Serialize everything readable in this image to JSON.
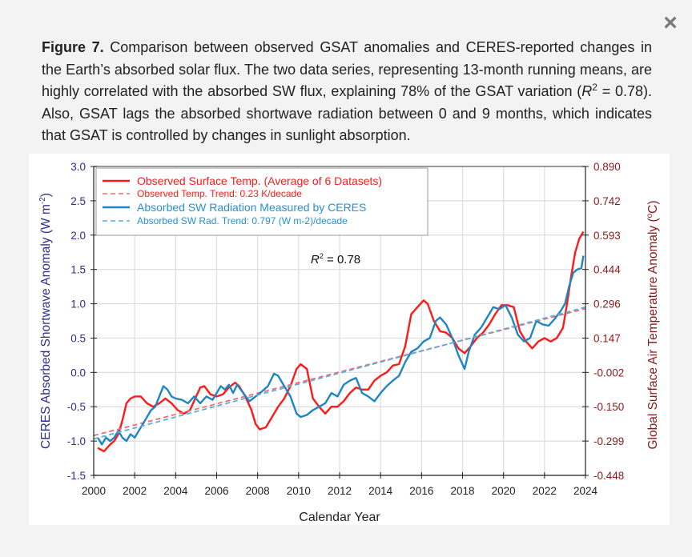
{
  "dialog": {
    "close_label": "×"
  },
  "caption": {
    "label": "Figure 7.",
    "text_1": " Comparison between observed GSAT anomalies and CERES-reported changes in the Earth’s absorbed solar flux. The two data series, representing 13-month running means, are highly correlated with the absorbed SW flux, explaining 78% of the GSAT variation (",
    "r_symbol": "R",
    "r_exp": "2",
    "text_2": " = 0.78). Also, GSAT lags the absorbed shortwave radiation between 0 and 9 months, which indicates that GSAT is controlled by changes in sunlight absorption."
  },
  "colors": {
    "temp": "#ff1a1a",
    "temp_trend": "#f26b6b",
    "sw": "#1f86c4",
    "sw_trend": "#5aaee0",
    "left_axis": "#2e2e8f",
    "right_axis": "#8b1a1a"
  },
  "chart_data": {
    "type": "line",
    "title": "",
    "xlabel": "Calendar Year",
    "ylabel": "CERES Absorbed Shortwave Anomaly (W m-2)",
    "ylabel_main": "CERES Absorbed Shortwave Anomaly (W m",
    "ylabel_sup": "-2",
    "ylabel_close": ")",
    "y2label": "Global Surface Air Temperature Anomaly (°C)",
    "y2label_main": "Global Surface Air Temperature Anomaly (",
    "y2label_sup": "o",
    "y2label_close": "C)",
    "xlim": [
      2000,
      2024
    ],
    "ylim": [
      -1.5,
      3.0
    ],
    "y2lim": [
      -0.448,
      0.89
    ],
    "grid": true,
    "x_ticks": [
      "2000",
      "2002",
      "2004",
      "2006",
      "2008",
      "2010",
      "2012",
      "2014",
      "2016",
      "2018",
      "2020",
      "2022",
      "2024"
    ],
    "y_ticks": [
      "3.0",
      "2.5",
      "2.0",
      "1.5",
      "1.0",
      "0.5",
      "0.0",
      "-0.5",
      "-1.0",
      "-1.5"
    ],
    "y2_ticks": [
      "0.890",
      "0.742",
      "0.593",
      "0.444",
      "0.296",
      "0.147",
      "-0.002",
      "-0.150",
      "-0.299",
      "-0.448"
    ],
    "annotation": {
      "r_symbol": "R",
      "r_exp": "2",
      "text": " = 0.78"
    },
    "legend_position": "top-left",
    "series": [
      {
        "name": "Observed Surface Temp. (Average of 6 Datasets)",
        "style": "solid",
        "color_key": "temp",
        "axis_note": "plotted on left-axis scale; right axis maps values to °C",
        "x": [
          2000.2,
          2000.5,
          2000.8,
          2001.0,
          2001.2,
          2001.4,
          2001.6,
          2001.8,
          2002.0,
          2002.3,
          2002.6,
          2002.9,
          2003.2,
          2003.5,
          2003.8,
          2004.1,
          2004.4,
          2004.7,
          2005.0,
          2005.2,
          2005.4,
          2005.7,
          2006.0,
          2006.3,
          2006.6,
          2006.9,
          2007.1,
          2007.4,
          2007.7,
          2007.9,
          2008.1,
          2008.4,
          2008.7,
          2009.0,
          2009.3,
          2009.6,
          2009.9,
          2010.1,
          2010.4,
          2010.7,
          2011.0,
          2011.3,
          2011.6,
          2011.9,
          2012.2,
          2012.5,
          2012.8,
          2013.1,
          2013.4,
          2013.7,
          2014.0,
          2014.3,
          2014.6,
          2014.9,
          2015.2,
          2015.5,
          2015.8,
          2016.1,
          2016.3,
          2016.6,
          2016.9,
          2017.2,
          2017.5,
          2017.8,
          2018.1,
          2018.4,
          2018.7,
          2019.0,
          2019.3,
          2019.6,
          2019.9,
          2020.2,
          2020.5,
          2020.8,
          2021.1,
          2021.4,
          2021.7,
          2022.0,
          2022.3,
          2022.6,
          2022.9,
          2023.1,
          2023.3,
          2023.5,
          2023.7,
          2023.9
        ],
        "values": [
          -1.1,
          -1.15,
          -1.05,
          -1.0,
          -0.9,
          -0.7,
          -0.45,
          -0.38,
          -0.35,
          -0.35,
          -0.45,
          -0.5,
          -0.45,
          -0.38,
          -0.45,
          -0.55,
          -0.6,
          -0.55,
          -0.35,
          -0.22,
          -0.2,
          -0.32,
          -0.35,
          -0.32,
          -0.22,
          -0.15,
          -0.2,
          -0.35,
          -0.55,
          -0.75,
          -0.83,
          -0.8,
          -0.65,
          -0.5,
          -0.38,
          -0.2,
          0.05,
          0.12,
          0.05,
          -0.38,
          -0.5,
          -0.6,
          -0.5,
          -0.5,
          -0.42,
          -0.3,
          -0.22,
          -0.25,
          -0.25,
          -0.12,
          -0.05,
          0.0,
          0.1,
          0.12,
          0.38,
          0.85,
          0.95,
          1.05,
          1.0,
          0.75,
          0.6,
          0.58,
          0.5,
          0.35,
          0.28,
          0.38,
          0.5,
          0.58,
          0.7,
          0.85,
          0.98,
          0.98,
          0.95,
          0.6,
          0.45,
          0.35,
          0.45,
          0.5,
          0.45,
          0.5,
          0.65,
          1.0,
          1.4,
          1.75,
          1.95,
          2.05
        ]
      },
      {
        "name": "Observed Temp. Trend: 0.23 K/decade",
        "style": "dashed",
        "color_key": "temp_trend",
        "x": [
          2000,
          2024
        ],
        "values": [
          -0.92,
          0.93
        ]
      },
      {
        "name": "Absorbed SW Radiation Measured by CERES",
        "style": "solid",
        "color_key": "sw",
        "x": [
          2000.2,
          2000.4,
          2000.6,
          2000.8,
          2001.0,
          2001.2,
          2001.4,
          2001.6,
          2001.8,
          2002.0,
          2002.2,
          2002.4,
          2002.6,
          2002.8,
          2003.0,
          2003.2,
          2003.4,
          2003.6,
          2003.8,
          2004.0,
          2004.3,
          2004.6,
          2004.9,
          2005.2,
          2005.5,
          2005.8,
          2006.0,
          2006.2,
          2006.4,
          2006.6,
          2006.8,
          2007.0,
          2007.3,
          2007.6,
          2007.9,
          2008.2,
          2008.5,
          2008.8,
          2009.0,
          2009.3,
          2009.6,
          2009.9,
          2010.1,
          2010.4,
          2010.7,
          2011.0,
          2011.3,
          2011.6,
          2011.9,
          2012.2,
          2012.5,
          2012.8,
          2013.1,
          2013.4,
          2013.7,
          2014.0,
          2014.3,
          2014.6,
          2014.9,
          2015.2,
          2015.5,
          2015.8,
          2016.1,
          2016.4,
          2016.7,
          2016.9,
          2017.2,
          2017.5,
          2017.8,
          2018.1,
          2018.3,
          2018.6,
          2018.9,
          2019.2,
          2019.5,
          2019.8,
          2020.1,
          2020.4,
          2020.7,
          2021.0,
          2021.3,
          2021.6,
          2021.9,
          2022.2,
          2022.5,
          2022.8,
          2023.0,
          2023.2,
          2023.4,
          2023.6,
          2023.8,
          2023.9
        ],
        "values": [
          -0.95,
          -1.05,
          -0.95,
          -1.0,
          -0.95,
          -0.85,
          -0.95,
          -1.0,
          -0.9,
          -0.95,
          -0.85,
          -0.75,
          -0.65,
          -0.55,
          -0.5,
          -0.35,
          -0.2,
          -0.25,
          -0.35,
          -0.38,
          -0.4,
          -0.45,
          -0.35,
          -0.45,
          -0.35,
          -0.4,
          -0.3,
          -0.2,
          -0.25,
          -0.18,
          -0.3,
          -0.18,
          -0.3,
          -0.42,
          -0.35,
          -0.28,
          -0.2,
          -0.02,
          -0.05,
          -0.2,
          -0.35,
          -0.6,
          -0.65,
          -0.62,
          -0.55,
          -0.5,
          -0.45,
          -0.3,
          -0.35,
          -0.18,
          -0.12,
          -0.08,
          -0.3,
          -0.35,
          -0.42,
          -0.3,
          -0.2,
          -0.12,
          -0.05,
          0.15,
          0.3,
          0.35,
          0.45,
          0.5,
          0.75,
          0.8,
          0.7,
          0.5,
          0.25,
          0.05,
          0.3,
          0.55,
          0.65,
          0.8,
          0.95,
          0.92,
          0.98,
          0.8,
          0.55,
          0.45,
          0.5,
          0.75,
          0.7,
          0.68,
          0.78,
          0.9,
          1.0,
          1.25,
          1.45,
          1.5,
          1.52,
          1.7
        ]
      },
      {
        "name": "Absorbed SW Rad. Trend: 0.797 (W m-2)/decade",
        "style": "dashed",
        "color_key": "sw_trend",
        "x": [
          2000,
          2024
        ],
        "values": [
          -0.97,
          0.95
        ]
      }
    ]
  }
}
